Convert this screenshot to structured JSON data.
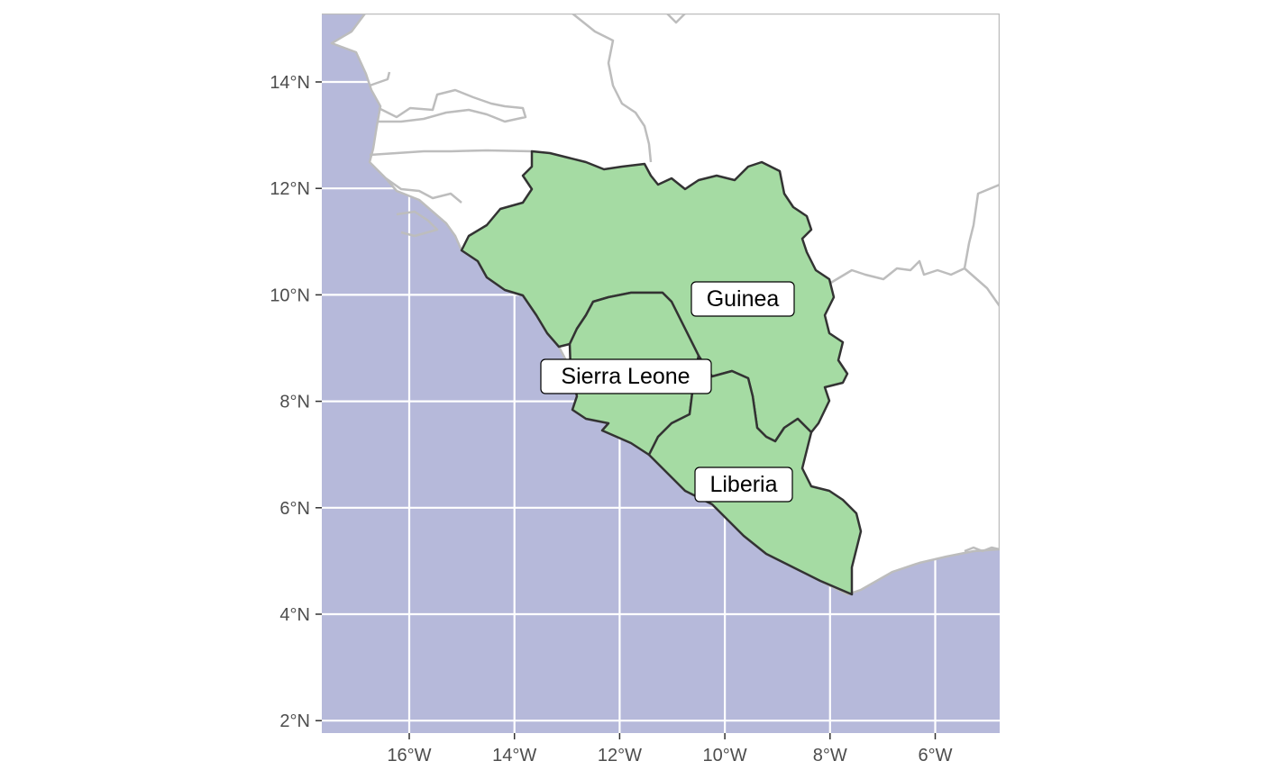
{
  "map": {
    "colors": {
      "ocean": "#b6b9da",
      "land": "#ffffff",
      "neighbor_border": "#bdbdbd",
      "highlight_fill": "#a5dba3",
      "highlight_border": "#333333",
      "grid": "#ffffff",
      "tick_text": "#4d4d4d"
    },
    "extent": {
      "lon": [
        -17.7,
        -4.8
      ],
      "lat": [
        1.75,
        15.3
      ]
    },
    "grid": true,
    "x_ticks": [
      {
        "lon": -16,
        "label": "16°W"
      },
      {
        "lon": -14,
        "label": "14°W"
      },
      {
        "lon": -12,
        "label": "12°W"
      },
      {
        "lon": -10,
        "label": "10°W"
      },
      {
        "lon": -8,
        "label": "8°W"
      },
      {
        "lon": -6,
        "label": "6°W"
      }
    ],
    "y_ticks": [
      {
        "lat": 14,
        "label": "14°N"
      },
      {
        "lat": 12,
        "label": "12°N"
      },
      {
        "lat": 10,
        "label": "10°N"
      },
      {
        "lat": 8,
        "label": "8°N"
      },
      {
        "lat": 6,
        "label": "6°N"
      },
      {
        "lat": 4,
        "label": "4°N"
      },
      {
        "lat": 2,
        "label": "2°N"
      }
    ],
    "countries": [
      {
        "name": "Guinea",
        "label": "Guinea",
        "label_lon": -9.8,
        "label_lat": 9.9
      },
      {
        "name": "Sierra Leone",
        "label": "Sierra Leone",
        "label_lon": -11.9,
        "label_lat": 8.45
      },
      {
        "name": "Liberia",
        "label": "Liberia",
        "label_lon": -9.8,
        "label_lat": 6.4
      }
    ]
  }
}
